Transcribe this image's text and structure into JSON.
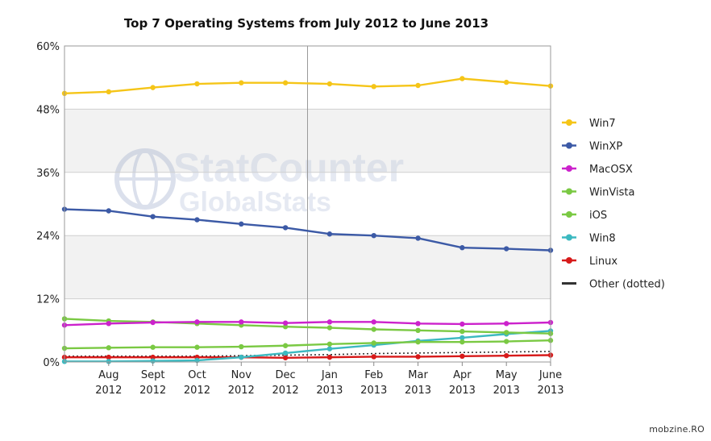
{
  "chart_data": {
    "type": "line",
    "title": "Top 7 Operating Systems from July 2012 to June 2013",
    "x_ticks": [
      {
        "month": "Aug",
        "year": "2012"
      },
      {
        "month": "Sept",
        "year": "2012"
      },
      {
        "month": "Oct",
        "year": "2012"
      },
      {
        "month": "Nov",
        "year": "2012"
      },
      {
        "month": "Dec",
        "year": "2012"
      },
      {
        "month": "Jan",
        "year": "2013"
      },
      {
        "month": "Feb",
        "year": "2013"
      },
      {
        "month": "Mar",
        "year": "2013"
      },
      {
        "month": "Apr",
        "year": "2013"
      },
      {
        "month": "May",
        "year": "2013"
      },
      {
        "month": "June",
        "year": "2013"
      }
    ],
    "x": [
      "Jul 2012",
      "Aug 2012",
      "Sept 2012",
      "Oct 2012",
      "Nov 2012",
      "Dec 2012",
      "Jan 2013",
      "Feb 2013",
      "Mar 2013",
      "Apr 2013",
      "May 2013",
      "June 2013"
    ],
    "y_ticks": [
      "0%",
      "12%",
      "24%",
      "36%",
      "48%",
      "60%"
    ],
    "ylim": [
      0,
      60
    ],
    "legend_position": "right",
    "series": [
      {
        "name": "Win7",
        "color": "#f5c518",
        "dotted": false,
        "values": [
          51.0,
          51.3,
          52.1,
          52.8,
          53.0,
          53.0,
          52.8,
          52.3,
          52.5,
          53.8,
          53.1,
          52.4
        ]
      },
      {
        "name": "WinXP",
        "color": "#3c5aa6",
        "dotted": false,
        "values": [
          29.0,
          28.7,
          27.6,
          27.0,
          26.2,
          25.5,
          24.3,
          24.0,
          23.5,
          21.7,
          21.5,
          21.2
        ]
      },
      {
        "name": "MacOSX",
        "color": "#cc22cc",
        "dotted": false,
        "values": [
          7.0,
          7.3,
          7.5,
          7.6,
          7.6,
          7.4,
          7.6,
          7.6,
          7.3,
          7.2,
          7.3,
          7.5
        ]
      },
      {
        "name": "WinVista",
        "color": "#7ac943",
        "dotted": false,
        "values": [
          8.2,
          7.8,
          7.6,
          7.3,
          7.0,
          6.7,
          6.5,
          6.2,
          6.0,
          5.8,
          5.6,
          5.4
        ]
      },
      {
        "name": "iOS",
        "color": "#7ac943",
        "dotted": false,
        "values": [
          2.6,
          2.7,
          2.8,
          2.8,
          2.9,
          3.1,
          3.4,
          3.6,
          3.8,
          3.8,
          3.9,
          4.1
        ]
      },
      {
        "name": "Win8",
        "color": "#3cb9c0",
        "dotted": false,
        "values": [
          0.1,
          0.1,
          0.2,
          0.3,
          0.9,
          1.7,
          2.5,
          3.2,
          4.0,
          4.6,
          5.3,
          5.9
        ]
      },
      {
        "name": "Linux",
        "color": "#d71a1a",
        "dotted": false,
        "values": [
          0.9,
          0.9,
          0.9,
          0.9,
          0.9,
          0.8,
          0.9,
          1.0,
          1.0,
          1.1,
          1.2,
          1.3
        ]
      },
      {
        "name": "Other (dotted)",
        "color": "#333333",
        "dotted": true,
        "values": [
          1.1,
          1.1,
          1.1,
          1.1,
          1.2,
          1.3,
          1.4,
          1.6,
          1.7,
          1.8,
          1.9,
          2.0
        ]
      }
    ]
  },
  "watermark": {
    "line1": "StatCounter",
    "line2": "GlobalStats"
  },
  "credit": "mobzine.RO"
}
